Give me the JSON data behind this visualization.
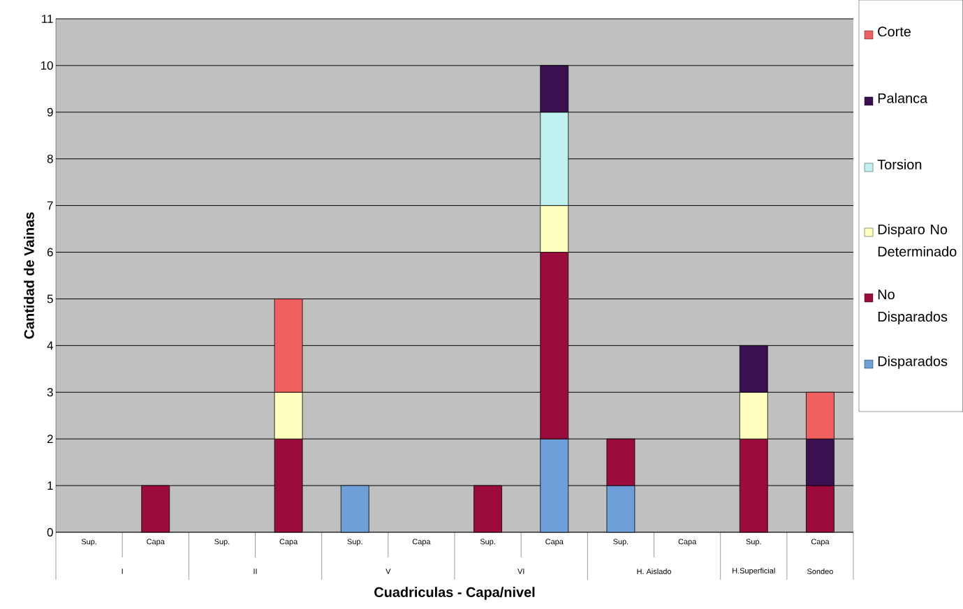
{
  "chart_data": {
    "type": "bar",
    "stacked": true,
    "xlabel": "Cuadriculas - Capa/nivel",
    "ylabel": "Cantidad de Vainas",
    "categories": [
      "Sup.",
      "Capa",
      "Sup.",
      "Capa",
      "Sup.",
      "Capa",
      "Sup.",
      "Capa",
      "Sup.",
      "Capa",
      "Sup.",
      "Capa"
    ],
    "annotations": [
      "I",
      "II",
      "V",
      "VI",
      "H. Aislado",
      "H.Superficial",
      "Sondeo"
    ],
    "series": [
      {
        "name": "Disparados",
        "color": "#6f9fd8",
        "values": [
          null,
          null,
          null,
          null,
          1,
          null,
          null,
          2,
          1,
          null,
          null,
          null
        ]
      },
      {
        "name": "No Disparados",
        "color": "#9b0b3c",
        "values": [
          null,
          1,
          null,
          2,
          null,
          null,
          1,
          4,
          1,
          null,
          2,
          1
        ]
      },
      {
        "name": "Disparo No Determinado",
        "color": "#ffffc0",
        "values": [
          null,
          null,
          null,
          1,
          null,
          null,
          null,
          1,
          null,
          null,
          1,
          null
        ]
      },
      {
        "name": "Torsion",
        "color": "#c0f0f0",
        "values": [
          null,
          null,
          null,
          null,
          null,
          null,
          null,
          2,
          null,
          null,
          null,
          null
        ]
      },
      {
        "name": "Palanca",
        "color": "#3a1050",
        "values": [
          null,
          null,
          null,
          null,
          null,
          null,
          null,
          1,
          null,
          null,
          1,
          1
        ]
      },
      {
        "name": "Corte",
        "color": "#f06060",
        "values": [
          null,
          null,
          null,
          2,
          null,
          null,
          null,
          null,
          null,
          null,
          null,
          1
        ]
      }
    ],
    "ylim": [
      0,
      11
    ],
    "yticks": [
      0,
      1,
      2,
      3,
      4,
      5,
      6,
      7,
      8,
      9,
      10,
      11
    ],
    "grid": "y",
    "legend": "top right"
  }
}
